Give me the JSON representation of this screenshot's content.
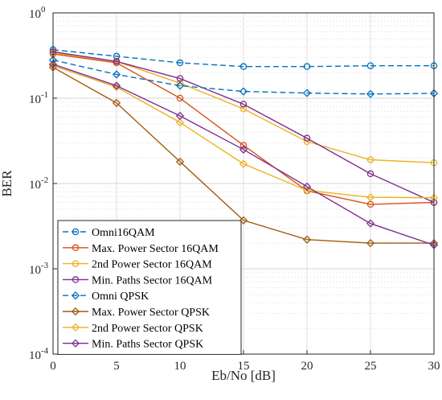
{
  "chart_data": {
    "type": "line",
    "title": "",
    "xlabel": "Eb/No [dB]",
    "ylabel": "BER",
    "x": [
      0,
      5,
      10,
      15,
      20,
      25,
      30
    ],
    "xlim": [
      0,
      30
    ],
    "ylim": [
      0.0001,
      1
    ],
    "yscale": "log",
    "grid": true,
    "legend_position": "bottom-left",
    "x_ticks": [
      "0",
      "5",
      "10",
      "15",
      "20",
      "25",
      "30"
    ],
    "y_ticks": [
      {
        "base": "10",
        "exp": "0"
      },
      {
        "base": "10",
        "exp": "-1"
      },
      {
        "base": "10",
        "exp": "-2"
      },
      {
        "base": "10",
        "exp": "-3"
      },
      {
        "base": "10",
        "exp": "-4"
      }
    ],
    "series": [
      {
        "name": "Omni16QAM",
        "color": "#0072BD",
        "dashed": true,
        "marker": "circle",
        "values": [
          0.37,
          0.31,
          0.26,
          0.235,
          0.235,
          0.24,
          0.24
        ]
      },
      {
        "name": "Max. Power Sector 16QAM",
        "color": "#D95319",
        "dashed": false,
        "marker": "circle",
        "values": [
          0.33,
          0.26,
          0.1,
          0.028,
          0.0082,
          0.0057,
          0.006
        ]
      },
      {
        "name": "2nd Power Sector 16QAM",
        "color": "#EDB120",
        "dashed": false,
        "marker": "circle",
        "values": [
          0.34,
          0.27,
          0.15,
          0.075,
          0.031,
          0.019,
          0.0175
        ]
      },
      {
        "name": "Min. Paths Sector 16QAM",
        "color": "#7E2F8E",
        "dashed": false,
        "marker": "circle",
        "values": [
          0.35,
          0.27,
          0.17,
          0.085,
          0.034,
          0.013,
          0.006
        ]
      },
      {
        "name": "Omni QPSK",
        "color": "#0072BD",
        "dashed": true,
        "marker": "diamond",
        "values": [
          0.28,
          0.19,
          0.14,
          0.12,
          0.115,
          0.112,
          0.114
        ]
      },
      {
        "name": "Max. Power Sector QPSK",
        "color": "#A05A10",
        "dashed": false,
        "marker": "diamond",
        "values": [
          0.23,
          0.088,
          0.018,
          0.0037,
          0.0022,
          0.002,
          0.002
        ]
      },
      {
        "name": "2nd Power Sector QPSK",
        "color": "#EDB120",
        "dashed": false,
        "marker": "diamond",
        "values": [
          0.24,
          0.135,
          0.052,
          0.017,
          0.0083,
          0.0069,
          0.0068
        ]
      },
      {
        "name": "Min. Paths Sector QPSK",
        "color": "#7E2F8E",
        "dashed": false,
        "marker": "diamond",
        "values": [
          0.25,
          0.14,
          0.062,
          0.025,
          0.0092,
          0.0034,
          0.0019
        ]
      }
    ]
  }
}
